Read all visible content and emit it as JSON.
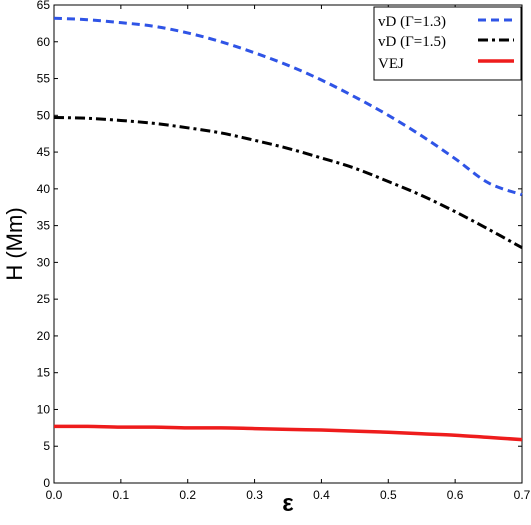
{
  "chart_data": {
    "type": "line",
    "title": "",
    "xlabel": "ε",
    "ylabel": "H (Mm)",
    "xlim": [
      0.0,
      0.7
    ],
    "ylim": [
      0,
      65
    ],
    "x_ticks": [
      0.0,
      0.1,
      0.2,
      0.3,
      0.4,
      0.5,
      0.6,
      0.7
    ],
    "x_tick_labels": [
      "0.0",
      "0.1",
      "0.2",
      "0.3",
      "0.4",
      "0.5",
      "0.6",
      "0.7"
    ],
    "y_ticks": [
      0,
      5,
      10,
      15,
      20,
      25,
      30,
      35,
      40,
      45,
      50,
      55,
      60,
      65
    ],
    "y_tick_labels": [
      "0",
      "5",
      "10",
      "15",
      "20",
      "25",
      "30",
      "35",
      "40",
      "45",
      "50",
      "55",
      "60",
      "65"
    ],
    "grid": false,
    "legend_position": "top-right",
    "series": [
      {
        "name": "vD (Γ=1.3)",
        "color": "#2f54e6",
        "style": "dashed",
        "x": [
          0.0,
          0.05,
          0.1,
          0.15,
          0.2,
          0.25,
          0.3,
          0.35,
          0.4,
          0.45,
          0.5,
          0.55,
          0.6,
          0.65,
          0.7
        ],
        "values": [
          63.2,
          63.0,
          62.6,
          62.1,
          61.2,
          60.0,
          58.5,
          56.8,
          54.8,
          52.5,
          50.0,
          47.2,
          44.1,
          40.8,
          39.2
        ]
      },
      {
        "name": "vD (Γ=1.5)",
        "color": "#000000",
        "style": "dashdot",
        "x": [
          0.0,
          0.05,
          0.1,
          0.15,
          0.2,
          0.25,
          0.3,
          0.35,
          0.4,
          0.45,
          0.5,
          0.55,
          0.6,
          0.65,
          0.7
        ],
        "values": [
          49.7,
          49.6,
          49.3,
          48.9,
          48.3,
          47.6,
          46.6,
          45.5,
          44.2,
          42.8,
          41.0,
          39.1,
          36.9,
          34.5,
          32.0
        ]
      },
      {
        "name": "VEJ",
        "color": "#ee1c1c",
        "style": "solid",
        "x": [
          0.0,
          0.05,
          0.1,
          0.15,
          0.2,
          0.25,
          0.3,
          0.35,
          0.4,
          0.45,
          0.5,
          0.55,
          0.6,
          0.65,
          0.7
        ],
        "values": [
          7.7,
          7.7,
          7.6,
          7.6,
          7.5,
          7.5,
          7.4,
          7.3,
          7.2,
          7.05,
          6.9,
          6.7,
          6.5,
          6.2,
          5.9
        ]
      }
    ]
  }
}
